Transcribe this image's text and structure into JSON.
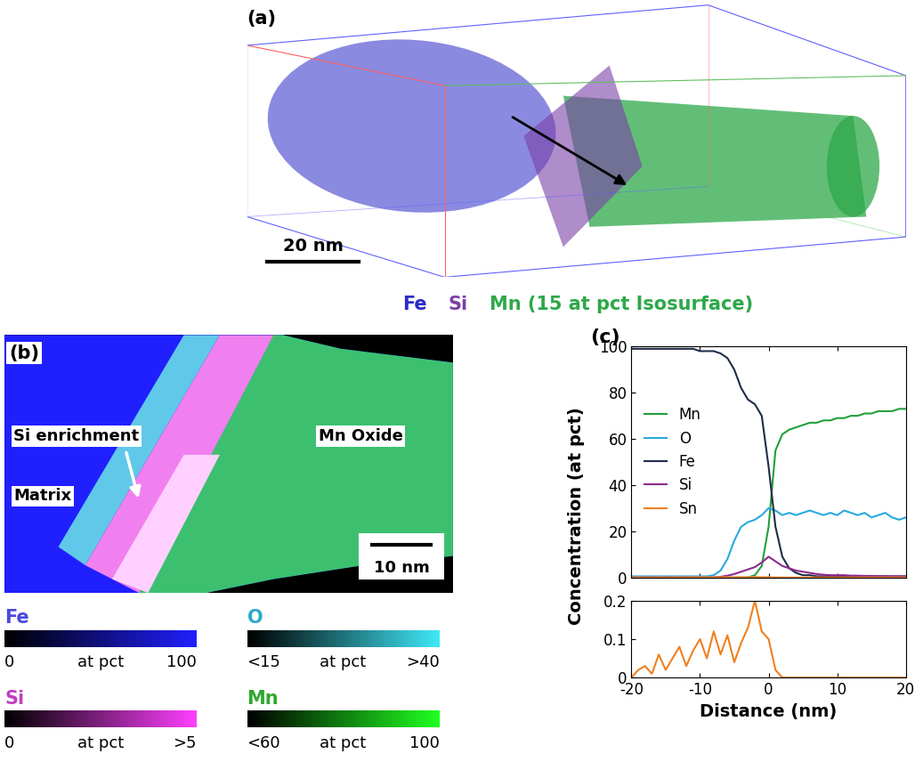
{
  "panel_a": {
    "label": "(a)",
    "scale_bar": "20 nm",
    "legend": [
      {
        "name": "Fe",
        "color": "#2b2bc8"
      },
      {
        "name": "Si",
        "color": "#7b3fa8"
      },
      {
        "name": "Mn (15 at pct Isosurface)",
        "color": "#2ea84a"
      }
    ]
  },
  "panel_b": {
    "label": "(b)",
    "si_label": "Si enrichment",
    "matrix_label": "Matrix",
    "oxide_label": "Mn Oxide",
    "scale_bar": "10 nm",
    "color_scales": [
      {
        "name": "Fe",
        "color": "#2020ff",
        "name_color": "#4a4adf",
        "low": "0",
        "unit": "at pct",
        "high": "100"
      },
      {
        "name": "O",
        "color": "#40e8f8",
        "name_color": "#2aa9c9",
        "low": "<15",
        "unit": "at pct",
        "high": ">40"
      },
      {
        "name": "Si",
        "color": "#ff40ff",
        "name_color": "#c040c0",
        "low": "0",
        "unit": "at pct",
        "high": ">5"
      },
      {
        "name": "Mn",
        "color": "#20ff20",
        "name_color": "#2fa82f",
        "low": "<60",
        "unit": "at pct",
        "high": "100"
      }
    ]
  },
  "chart_data": [
    {
      "type": "line",
      "title": "(c)",
      "y_label": "Concentration (at pct)",
      "x": [
        -20,
        -19,
        -18,
        -17,
        -16,
        -15,
        -14,
        -13,
        -12,
        -11,
        -10,
        -9,
        -8,
        -7,
        -6,
        -5,
        -4,
        -3,
        -2,
        -1,
        0,
        1,
        2,
        3,
        4,
        5,
        6,
        7,
        8,
        9,
        10,
        11,
        12,
        13,
        14,
        15,
        16,
        17,
        18,
        19,
        20
      ],
      "series": [
        {
          "name": "Mn",
          "color": "#22a03c",
          "values": [
            0,
            0,
            0,
            0,
            0,
            0,
            0,
            0,
            0,
            0,
            0,
            0,
            0,
            0,
            0,
            0,
            0,
            0,
            1,
            5,
            22,
            55,
            62,
            64,
            65,
            66,
            67,
            67,
            68,
            68,
            69,
            69,
            70,
            70,
            71,
            71,
            72,
            72,
            72,
            73,
            73
          ]
        },
        {
          "name": "O",
          "color": "#29a9e0",
          "values": [
            0.5,
            0.5,
            0.5,
            0.5,
            0.5,
            0.5,
            0.5,
            0.5,
            0.5,
            0.5,
            0.5,
            0.5,
            1,
            3,
            8,
            16,
            22,
            24,
            25,
            27,
            30,
            29,
            27,
            28,
            27,
            28,
            29,
            28,
            27,
            28,
            27,
            29,
            28,
            27,
            28,
            26,
            27,
            28,
            26,
            25,
            26
          ]
        },
        {
          "name": "Fe",
          "color": "#1f2d4a",
          "values": [
            99,
            99,
            99,
            99,
            99,
            99,
            99,
            99,
            99,
            99,
            98,
            98,
            98,
            97,
            95,
            90,
            82,
            77,
            75,
            70,
            48,
            22,
            9,
            4,
            2,
            1,
            1,
            0.5,
            0.5,
            0.5,
            0.5,
            0.5,
            0.5,
            0.5,
            0.5,
            0.5,
            0.5,
            0.5,
            0.5,
            0.5,
            0.5
          ]
        },
        {
          "name": "Si",
          "color": "#8e2a8e",
          "values": [
            0,
            0,
            0,
            0,
            0,
            0,
            0,
            0,
            0,
            0,
            0,
            0,
            0,
            0.3,
            0.8,
            1.5,
            2.5,
            3.5,
            4.5,
            6.5,
            9,
            7,
            5,
            4,
            3,
            2.5,
            2,
            1.5,
            1.2,
            1,
            1,
            1,
            0.8,
            0.8,
            0.7,
            0.7,
            0.6,
            0.6,
            0.5,
            0.5,
            0.5
          ]
        },
        {
          "name": "Sn",
          "color": "#f08020",
          "values": [
            0,
            0.02,
            0.03,
            0.01,
            0.06,
            0.02,
            0.05,
            0.08,
            0.03,
            0.07,
            0.1,
            0.05,
            0.12,
            0.06,
            0.11,
            0.04,
            0.09,
            0.13,
            0.2,
            0.12,
            0.1,
            0.02,
            0,
            0,
            0,
            0,
            0,
            0,
            0,
            0,
            0,
            0,
            0,
            0,
            0,
            0,
            0,
            0,
            0,
            0,
            0
          ]
        }
      ],
      "xlim": [
        -20,
        20
      ],
      "xticks": [
        -20,
        -10,
        0,
        10,
        20
      ],
      "ylim": [
        0,
        100
      ],
      "yticks": [
        0,
        20,
        40,
        60,
        80,
        100
      ],
      "legend": "center left",
      "tick_labels": "y"
    },
    {
      "type": "line",
      "x_label": "Distance (nm)",
      "x": [
        -20,
        -19,
        -18,
        -17,
        -16,
        -15,
        -14,
        -13,
        -12,
        -11,
        -10,
        -9,
        -8,
        -7,
        -6,
        -5,
        -4,
        -3,
        -2,
        -1,
        0,
        1,
        2,
        3,
        4,
        5,
        6,
        7,
        8,
        9,
        10,
        11,
        12,
        13,
        14,
        15,
        16,
        17,
        18,
        19,
        20
      ],
      "series": [
        {
          "name": "Sn",
          "color": "#f08020",
          "values": [
            0,
            0.02,
            0.03,
            0.01,
            0.06,
            0.02,
            0.05,
            0.08,
            0.03,
            0.07,
            0.1,
            0.05,
            0.12,
            0.06,
            0.11,
            0.04,
            0.09,
            0.13,
            0.2,
            0.12,
            0.1,
            0.02,
            0,
            0,
            0,
            0,
            0,
            0,
            0,
            0,
            0,
            0,
            0,
            0,
            0,
            0,
            0,
            0,
            0,
            0,
            0
          ]
        }
      ],
      "xlim": [
        -20,
        20
      ],
      "xticks": [
        -20,
        -10,
        0,
        10,
        20
      ],
      "ylim": [
        0,
        0.2
      ],
      "yticks": [
        0,
        0.1,
        0.2
      ]
    }
  ]
}
